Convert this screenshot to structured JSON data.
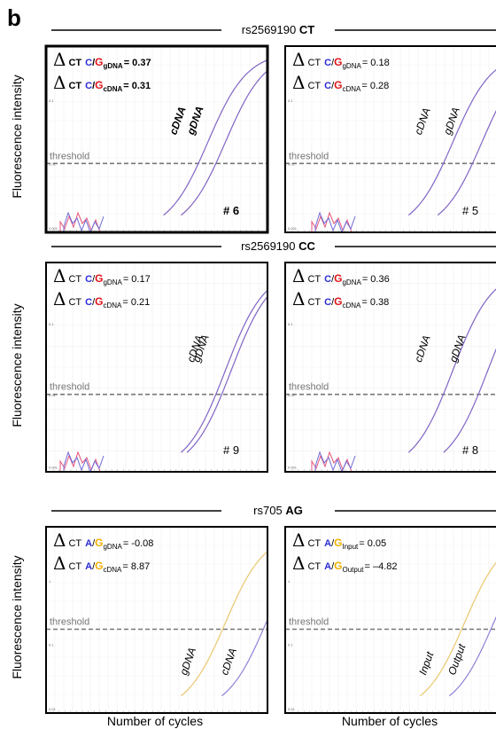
{
  "figure": {
    "panel_letter": "b",
    "y_axis_label": "Fluorescence intensity",
    "x_axis_label": "Number of cycles"
  },
  "colors": {
    "C": "#2b2bd6",
    "G_red": "#e0141a",
    "A": "#2b2bd6",
    "G_yellow": "#f0b000",
    "curve_red": "#e8557a",
    "curve_blue": "#6d6ad6",
    "curve_yellow": "#f2cf6a",
    "curve_purple": "#8f84d8",
    "curve_tan": "#c9a98a",
    "threshold": "#777777"
  },
  "rows": [
    {
      "snp": "rs2569190",
      "genotype": "CT",
      "panels": [
        {
          "sample": "# 6",
          "bold": true,
          "threshold_label": "threshold",
          "y_ticks": [
            "0.1",
            "0.01",
            "0.001"
          ],
          "delta_lines": [
            {
              "delta": "Δ",
              "ct": "CT",
              "a1": "C",
              "slash": "/",
              "a2": "G",
              "sub": "gDNA",
              "value": "= 0.37"
            },
            {
              "delta": "Δ",
              "ct": "CT",
              "a1": "C",
              "slash": "/",
              "a2": "G",
              "sub": "cDNA",
              "value": "= 0.31"
            }
          ],
          "curve_labels": [
            "cDNA",
            "gDNA"
          ]
        },
        {
          "sample": "# 5",
          "bold": false,
          "threshold_label": "threshold",
          "y_ticks": [
            "0.1",
            "0.01",
            "0.001"
          ],
          "delta_lines": [
            {
              "delta": "Δ",
              "ct": "CT",
              "a1": "C",
              "slash": "/",
              "a2": "G",
              "sub": "gDNA",
              "value": "= 0.18"
            },
            {
              "delta": "Δ",
              "ct": "CT",
              "a1": "C",
              "slash": "/",
              "a2": "G",
              "sub": "cDNA",
              "value": "= 0.28"
            }
          ],
          "curve_labels": [
            "cDNA",
            "gDNA"
          ]
        }
      ]
    },
    {
      "snp": "rs2569190",
      "genotype": "CC",
      "panels": [
        {
          "sample": "# 9",
          "bold": false,
          "threshold_label": "threshold",
          "y_ticks": [
            "0.1",
            "0.01",
            "0.001"
          ],
          "delta_lines": [
            {
              "delta": "Δ",
              "ct": "CT",
              "a1": "C",
              "slash": "/",
              "a2": "G",
              "sub": "gDNA",
              "value": "= 0.17"
            },
            {
              "delta": "Δ",
              "ct": "CT",
              "a1": "C",
              "slash": "/",
              "a2": "G",
              "sub": "cDNA",
              "value": "= 0.21"
            }
          ],
          "curve_labels": [
            "cDNA",
            "gDNA"
          ]
        },
        {
          "sample": "# 8",
          "bold": false,
          "threshold_label": "threshold",
          "y_ticks": [
            "0.1",
            "0.01",
            "0.001"
          ],
          "delta_lines": [
            {
              "delta": "Δ",
              "ct": "CT",
              "a1": "C",
              "slash": "/",
              "a2": "G",
              "sub": "gDNA",
              "value": "= 0.36"
            },
            {
              "delta": "Δ",
              "ct": "CT",
              "a1": "C",
              "slash": "/",
              "a2": "G",
              "sub": "cDNA",
              "value": "= 0.38"
            }
          ],
          "curve_labels": [
            "cDNA",
            "gDNA"
          ]
        }
      ]
    },
    {
      "snp": "rs705",
      "genotype": "AG",
      "panels": [
        {
          "sample": "",
          "bold": false,
          "threshold_label": "threshold",
          "y_ticks": [
            "1",
            "0.1",
            "0.01"
          ],
          "delta_lines": [
            {
              "delta": "Δ",
              "ct": "CT",
              "a1": "A",
              "slash": "/",
              "a2": "G",
              "sub": "gDNA",
              "value": "= -0.08"
            },
            {
              "delta": "Δ",
              "ct": "CT",
              "a1": "A",
              "slash": "/",
              "a2": "G",
              "sub": "cDNA",
              "value": "= 8.87"
            }
          ],
          "curve_labels": [
            "gDNA",
            "cDNA"
          ]
        },
        {
          "sample": "",
          "bold": false,
          "threshold_label": "threshold",
          "y_ticks": [
            "1",
            "0.1",
            "0.01"
          ],
          "delta_lines": [
            {
              "delta": "Δ",
              "ct": "CT",
              "a1": "A",
              "slash": "/",
              "a2": "G",
              "sub": "Input",
              "value": "= 0.05"
            },
            {
              "delta": "Δ",
              "ct": "CT",
              "a1": "A",
              "slash": "/",
              "a2": "G",
              "sub": "Output",
              "value": "= –4.82"
            }
          ],
          "curve_labels": [
            "Input",
            "Output"
          ]
        }
      ]
    }
  ],
  "chart_data": [
    {
      "type": "line",
      "title": "rs2569190 CT # 6",
      "xlabel": "Number of cycles",
      "ylabel": "Fluorescence intensity",
      "y_scale": "log",
      "ylim": [
        0.001,
        0.3
      ],
      "threshold": 0.01,
      "series": [
        {
          "name": "cDNA",
          "ct": 24
        },
        {
          "name": "gDNA",
          "ct": 27
        }
      ]
    },
    {
      "type": "line",
      "title": "rs2569190 CT # 5",
      "xlabel": "Number of cycles",
      "ylabel": "Fluorescence intensity",
      "y_scale": "log",
      "ylim": [
        0.001,
        0.3
      ],
      "threshold": 0.01,
      "series": [
        {
          "name": "cDNA",
          "ct": 25
        },
        {
          "name": "gDNA",
          "ct": 30
        }
      ]
    },
    {
      "type": "line",
      "title": "rs2569190 CC # 9",
      "xlabel": "Number of cycles",
      "ylabel": "Fluorescence intensity",
      "y_scale": "log",
      "ylim": [
        0.001,
        0.3
      ],
      "threshold": 0.01,
      "series": [
        {
          "name": "cDNA",
          "ct": 27
        },
        {
          "name": "gDNA",
          "ct": 28
        }
      ]
    },
    {
      "type": "line",
      "title": "rs2569190 CC # 8",
      "xlabel": "Number of cycles",
      "ylabel": "Fluorescence intensity",
      "y_scale": "log",
      "ylim": [
        0.001,
        0.3
      ],
      "threshold": 0.01,
      "series": [
        {
          "name": "cDNA",
          "ct": 25
        },
        {
          "name": "gDNA",
          "ct": 31
        }
      ]
    },
    {
      "type": "line",
      "title": "rs705 AG",
      "xlabel": "Number of cycles",
      "ylabel": "Fluorescence intensity",
      "y_scale": "log",
      "threshold": 0.1,
      "series": [
        {
          "name": "gDNA",
          "ct": 27
        },
        {
          "name": "cDNA",
          "ct": 34
        }
      ]
    },
    {
      "type": "line",
      "title": "rs705 AG",
      "xlabel": "Number of cycles",
      "ylabel": "Fluorescence intensity",
      "y_scale": "log",
      "threshold": 0.1,
      "series": [
        {
          "name": "Input",
          "ct": 27
        },
        {
          "name": "Output",
          "ct": 32
        }
      ]
    }
  ]
}
